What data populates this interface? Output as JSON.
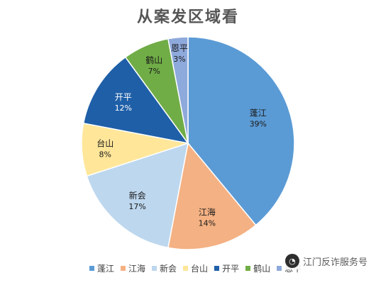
{
  "chart_data": {
    "type": "pie",
    "title": "从案发区域看",
    "categories": [
      "蓬江",
      "江海",
      "新会",
      "台山",
      "开平",
      "鹤山",
      "恩平"
    ],
    "values": [
      39,
      14,
      17,
      8,
      12,
      7,
      3
    ],
    "value_labels": [
      "39%",
      "14%",
      "17%",
      "8%",
      "12%",
      "7%",
      "3%"
    ],
    "colors": [
      "#5B9BD5",
      "#F4B183",
      "#BDD7EE",
      "#FFE699",
      "#1F5FA8",
      "#70AD47",
      "#8EA9DB"
    ],
    "legend_position": "bottom"
  },
  "watermark": {
    "icon": "wechat-icon",
    "text": "江门反诈服务号"
  }
}
